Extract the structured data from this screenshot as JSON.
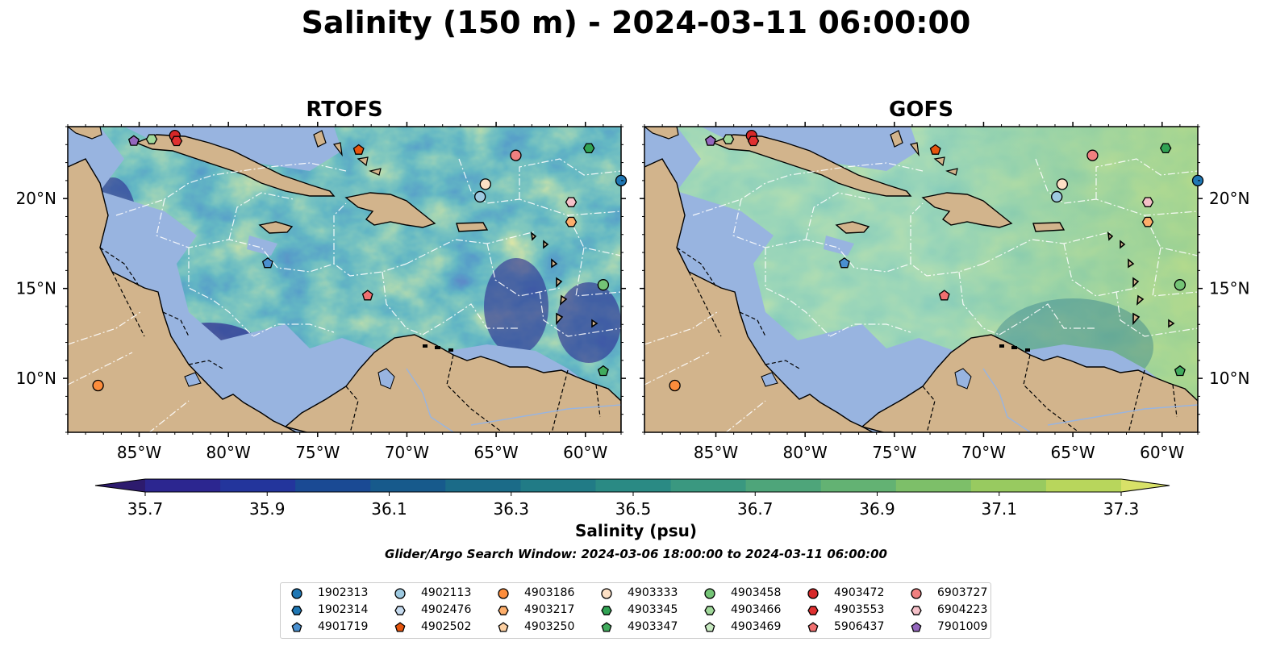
{
  "title": "Salinity (150 m) - 2024-03-11 06:00:00",
  "panels": [
    {
      "title": "RTOFS"
    },
    {
      "title": "GOFS"
    }
  ],
  "map": {
    "lon_range": [
      -89,
      -58
    ],
    "lat_range": [
      7,
      24
    ],
    "lon_ticks": [
      "85°W",
      "80°W",
      "75°W",
      "70°W",
      "65°W",
      "60°W"
    ],
    "lat_ticks": [
      "20°N",
      "15°N",
      "10°N"
    ],
    "land_color": "#d2b48c",
    "shallow_color": "#98b4e0",
    "pacific_color": "#2a1a6b"
  },
  "colorbar": {
    "ticks": [
      "35.7",
      "35.9",
      "36.1",
      "36.3",
      "36.5",
      "36.7",
      "36.9",
      "37.1",
      "37.3"
    ],
    "label": "Salinity (psu)",
    "colors": [
      "#2d1b6e",
      "#2c2690",
      "#23359c",
      "#1a4a94",
      "#175a8c",
      "#1b6b88",
      "#217b86",
      "#2a8a84",
      "#3a9880",
      "#4ea57a",
      "#63b273",
      "#7dbf69",
      "#98ca60",
      "#b8d65c",
      "#d8e168"
    ],
    "extend": "both"
  },
  "search_window": "Glider/Argo Search Window: 2024-03-06 18:00:00 to 2024-03-11 06:00:00",
  "legend": [
    {
      "id": "1902313",
      "marker": "circle",
      "color": "#1f77b4"
    },
    {
      "id": "1902314",
      "marker": "hexagon",
      "color": "#1f77b4"
    },
    {
      "id": "4901719",
      "marker": "pentagon",
      "color": "#4a90d0"
    },
    {
      "id": "4902113",
      "marker": "circle",
      "color": "#9ecae1"
    },
    {
      "id": "4902476",
      "marker": "hexagon",
      "color": "#c6dbef"
    },
    {
      "id": "4902502",
      "marker": "pentagon",
      "color": "#e6550d"
    },
    {
      "id": "4903186",
      "marker": "circle",
      "color": "#fd8d3c"
    },
    {
      "id": "4903217",
      "marker": "hexagon",
      "color": "#fdae6b"
    },
    {
      "id": "4903250",
      "marker": "pentagon",
      "color": "#fdd0a2"
    },
    {
      "id": "4903333",
      "marker": "circle",
      "color": "#fde0c5"
    },
    {
      "id": "4903345",
      "marker": "hexagon",
      "color": "#31a354"
    },
    {
      "id": "4903347",
      "marker": "pentagon",
      "color": "#41ab5d"
    },
    {
      "id": "4903458",
      "marker": "circle",
      "color": "#74c476"
    },
    {
      "id": "4903466",
      "marker": "hexagon",
      "color": "#a1d99b"
    },
    {
      "id": "4903469",
      "marker": "pentagon",
      "color": "#c7e9c0"
    },
    {
      "id": "4903472",
      "marker": "circle",
      "color": "#d62728"
    },
    {
      "id": "4903553",
      "marker": "hexagon",
      "color": "#e03030"
    },
    {
      "id": "5906437",
      "marker": "pentagon",
      "color": "#f07070"
    },
    {
      "id": "6903727",
      "marker": "circle",
      "color": "#f08080"
    },
    {
      "id": "6904223",
      "marker": "hexagon",
      "color": "#f4c0c8"
    },
    {
      "id": "7901009",
      "marker": "pentagon",
      "color": "#9467bd"
    }
  ],
  "floats": [
    {
      "lon": -85.3,
      "lat": 23.2,
      "marker": "pentagon",
      "color": "#9467bd"
    },
    {
      "lon": -84.3,
      "lat": 23.3,
      "marker": "hexagon",
      "color": "#a1d99b"
    },
    {
      "lon": -83.0,
      "lat": 23.5,
      "marker": "circle",
      "color": "#d62728"
    },
    {
      "lon": -82.9,
      "lat": 23.2,
      "marker": "hexagon",
      "color": "#e03030"
    },
    {
      "lon": -72.7,
      "lat": 22.7,
      "marker": "pentagon",
      "color": "#e6550d"
    },
    {
      "lon": -63.9,
      "lat": 22.4,
      "marker": "circle",
      "color": "#f08080"
    },
    {
      "lon": -59.8,
      "lat": 22.8,
      "marker": "hexagon",
      "color": "#31a354"
    },
    {
      "lon": -58.0,
      "lat": 21.0,
      "marker": "circle",
      "color": "#1f77b4"
    },
    {
      "lon": -65.6,
      "lat": 20.8,
      "marker": "circle",
      "color": "#fde0c5"
    },
    {
      "lon": -65.9,
      "lat": 20.1,
      "marker": "circle",
      "color": "#9ecae1"
    },
    {
      "lon": -60.8,
      "lat": 19.8,
      "marker": "hexagon",
      "color": "#f4c0c8"
    },
    {
      "lon": -60.8,
      "lat": 18.7,
      "marker": "hexagon",
      "color": "#fdae6b"
    },
    {
      "lon": -77.8,
      "lat": 16.4,
      "marker": "pentagon",
      "color": "#4a90d0"
    },
    {
      "lon": -59.0,
      "lat": 15.2,
      "marker": "circle",
      "color": "#74c476"
    },
    {
      "lon": -72.2,
      "lat": 14.6,
      "marker": "pentagon",
      "color": "#f07070"
    },
    {
      "lon": -59.0,
      "lat": 10.4,
      "marker": "pentagon",
      "color": "#41ab5d"
    },
    {
      "lon": -87.3,
      "lat": 9.6,
      "marker": "circle",
      "color": "#fd8d3c"
    }
  ]
}
